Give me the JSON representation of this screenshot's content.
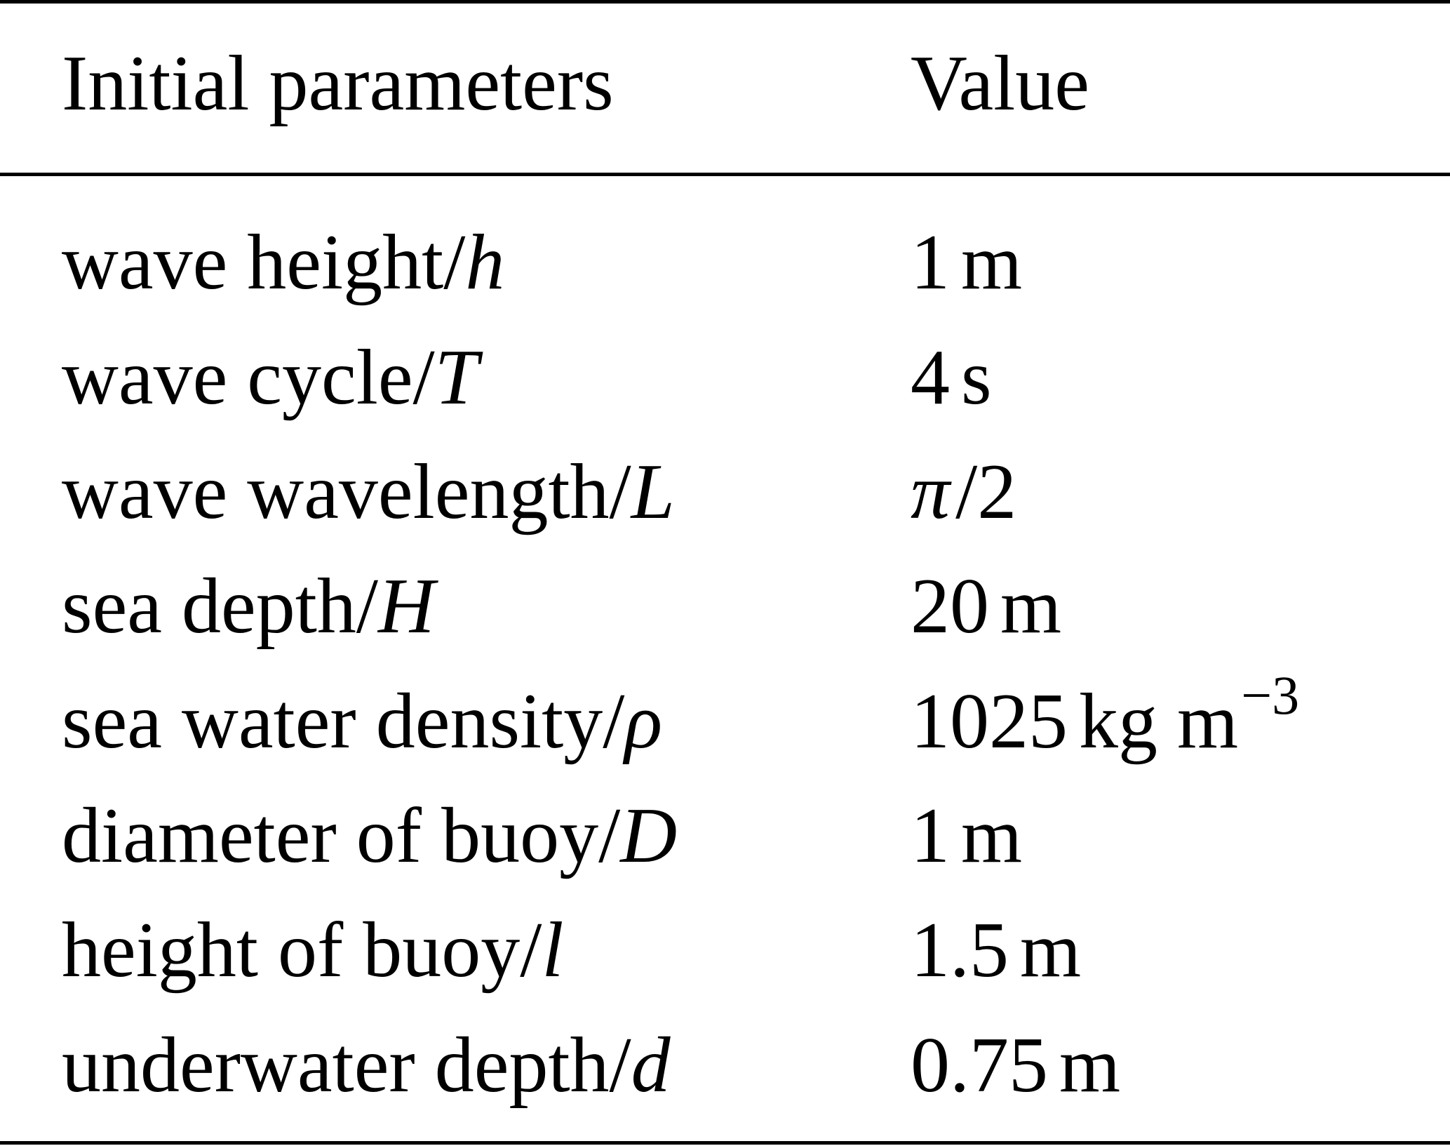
{
  "table": {
    "header": {
      "parameter": "Initial parameters",
      "value": "Value"
    },
    "rows": [
      {
        "label": "wave height/",
        "symbol": "h",
        "value": "1",
        "unit": "m"
      },
      {
        "label": "wave cycle/",
        "symbol": "T",
        "value": "4",
        "unit": "s"
      },
      {
        "label": "wave wavelength/",
        "symbol": "L",
        "value_symbol": "π",
        "value": "/2",
        "unit": ""
      },
      {
        "label": "sea depth/",
        "symbol": "H",
        "value": "20",
        "unit": "m"
      },
      {
        "label": "sea water density/",
        "symbol": "ρ",
        "value": "1025",
        "unit": "kg m",
        "unit_exp": "−3"
      },
      {
        "label": "diameter of buoy/",
        "symbol": "D",
        "value": "1",
        "unit": "m"
      },
      {
        "label": "height of buoy/",
        "symbol": "l",
        "value": "1.5",
        "unit": "m"
      },
      {
        "label": "underwater depth/",
        "symbol": "d",
        "value": "0.75",
        "unit": "m"
      }
    ]
  }
}
